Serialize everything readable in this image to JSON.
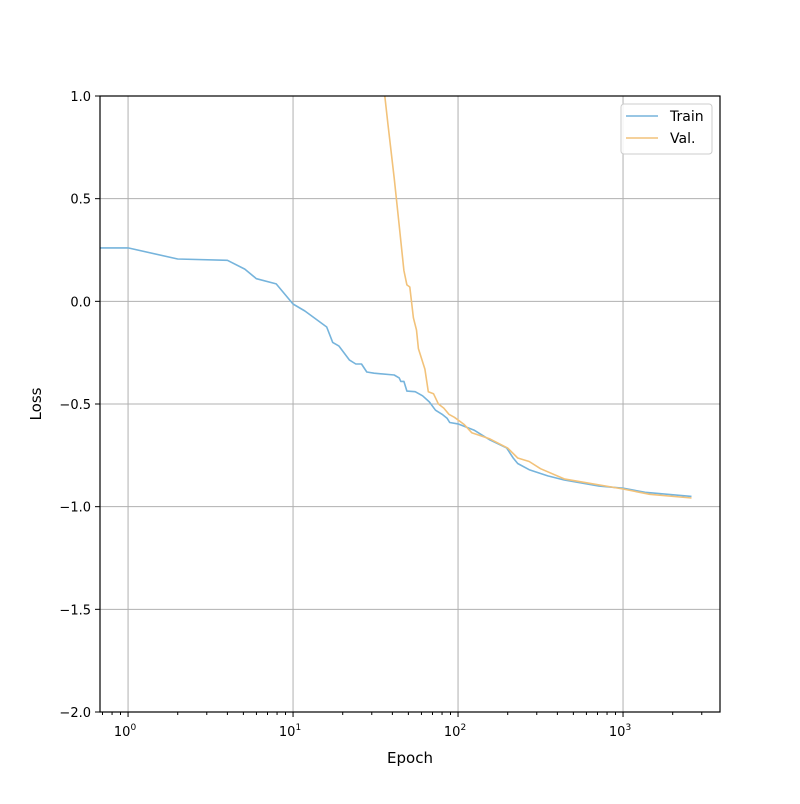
{
  "chart_data": {
    "type": "line",
    "title": "",
    "xlabel": "Epoch",
    "ylabel": "Loss",
    "xscale": "log",
    "xlim": [
      0.676,
      3870
    ],
    "ylim": [
      -2.0,
      1.0
    ],
    "grid": true,
    "legend_position": "top-right",
    "x_ticks": [
      {
        "value": 1,
        "base": "10",
        "exp": "0"
      },
      {
        "value": 10,
        "base": "10",
        "exp": "1"
      },
      {
        "value": 100,
        "base": "10",
        "exp": "2"
      },
      {
        "value": 1000,
        "base": "10",
        "exp": "3"
      }
    ],
    "y_ticks": [
      {
        "value": 1.0,
        "label": "1.0"
      },
      {
        "value": 0.5,
        "label": "0.5"
      },
      {
        "value": 0.0,
        "label": "0.0"
      },
      {
        "value": -0.5,
        "label": "−0.5"
      },
      {
        "value": -1.0,
        "label": "−1.0"
      },
      {
        "value": -1.5,
        "label": "−1.5"
      },
      {
        "value": -2.0,
        "label": "−2.0"
      }
    ],
    "series": [
      {
        "name": "Train",
        "color": "#76b4dc",
        "x": [
          0.68,
          1,
          2.0,
          4.0,
          5.1,
          6.0,
          7.9,
          10,
          11.8,
          16,
          17.4,
          19,
          22,
          24,
          26,
          28,
          31,
          41,
          44,
          45,
          47,
          49,
          55,
          61,
          67,
          73,
          80,
          86,
          89,
          100,
          125,
          156,
          197,
          216,
          230,
          270,
          350,
          440,
          716,
          1000,
          1360,
          2600
        ],
        "y": [
          0.26,
          0.26,
          0.206,
          0.2,
          0.157,
          0.11,
          0.085,
          -0.013,
          -0.047,
          -0.125,
          -0.2,
          -0.218,
          -0.286,
          -0.305,
          -0.305,
          -0.344,
          -0.35,
          -0.359,
          -0.373,
          -0.39,
          -0.39,
          -0.437,
          -0.44,
          -0.46,
          -0.49,
          -0.53,
          -0.55,
          -0.57,
          -0.59,
          -0.597,
          -0.627,
          -0.675,
          -0.714,
          -0.763,
          -0.79,
          -0.82,
          -0.85,
          -0.87,
          -0.9,
          -0.91,
          -0.93,
          -0.95
        ]
      },
      {
        "name": "Val.",
        "color": "#f2c27a",
        "x": [
          36,
          37.6,
          41,
          44,
          47,
          49,
          51,
          53.6,
          56,
          57.5,
          63,
          66,
          71,
          76,
          82,
          88,
          95,
          109,
          121,
          156,
          200,
          230,
          270,
          316,
          440,
          1000,
          1450,
          2600
        ],
        "y": [
          1.0,
          0.86,
          0.6,
          0.37,
          0.15,
          0.08,
          0.07,
          -0.08,
          -0.14,
          -0.23,
          -0.33,
          -0.44,
          -0.45,
          -0.5,
          -0.52,
          -0.55,
          -0.565,
          -0.6,
          -0.64,
          -0.67,
          -0.715,
          -0.763,
          -0.78,
          -0.815,
          -0.865,
          -0.914,
          -0.94,
          -0.958
        ]
      }
    ]
  }
}
